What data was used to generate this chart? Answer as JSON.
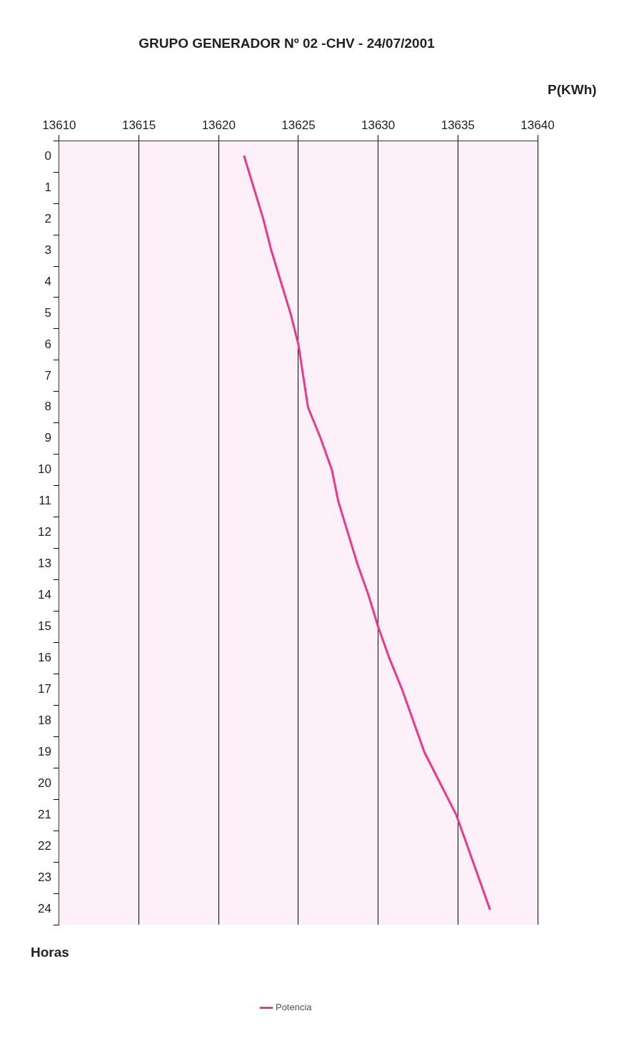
{
  "chart_data": {
    "type": "line",
    "orientation": "horizontal",
    "title": "GRUPO GENERADOR Nº 02 -CHV - 24/07/2001",
    "xlabel": "P(KWh)",
    "ylabel": "Horas",
    "categories": [
      "0",
      "1",
      "2",
      "3",
      "4",
      "5",
      "6",
      "7",
      "8",
      "9",
      "10",
      "11",
      "12",
      "13",
      "14",
      "15",
      "16",
      "17",
      "18",
      "19",
      "20",
      "21",
      "22",
      "23",
      "24"
    ],
    "series": [
      {
        "name": "Potencia",
        "color": "#e8398a",
        "values": [
          13621.6,
          13622.2,
          13622.8,
          13623.3,
          13623.9,
          13624.5,
          13625.0,
          13625.3,
          13625.6,
          13626.4,
          13627.1,
          13627.5,
          13628.1,
          13628.7,
          13629.4,
          13630.0,
          13630.7,
          13631.5,
          13632.2,
          13632.9,
          13633.9,
          13634.9,
          13635.6,
          13636.3,
          13637.0
        ]
      }
    ],
    "xlim": [
      13610,
      13640
    ],
    "xticks": [
      13610,
      13615,
      13620,
      13625,
      13630,
      13635,
      13640
    ],
    "grid": "x",
    "legend": "bottom",
    "marker": "none",
    "line_style": "solid"
  }
}
